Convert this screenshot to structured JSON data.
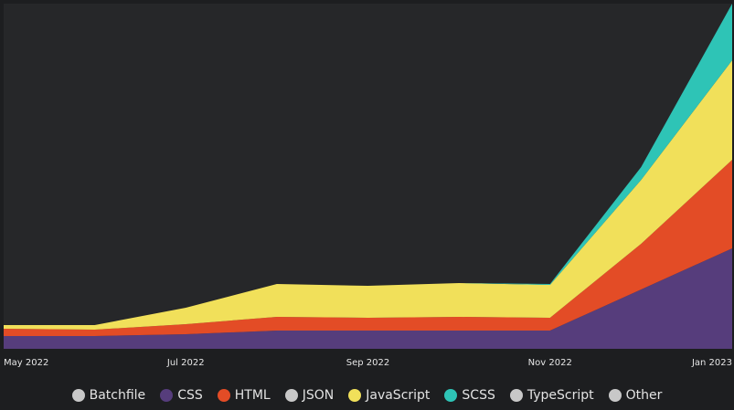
{
  "chart_data": {
    "type": "area",
    "stacked": true,
    "x": [
      "May 2022",
      "Jun 2022",
      "Jul 2022",
      "Aug 2022",
      "Sep 2022",
      "Oct 2022",
      "Nov 2022",
      "Dec 2022",
      "Jan 2023"
    ],
    "x_tick_labels": [
      "May 2022",
      "Jul 2022",
      "Sep 2022",
      "Nov 2022",
      "Jan 2023"
    ],
    "ylim": [
      0,
      378
    ],
    "grid": false,
    "legend_position": "bottom",
    "series": [
      {
        "name": "Batchfile",
        "color": "#c8c8c8",
        "values": [
          0,
          0,
          0,
          0,
          0,
          0,
          0,
          0,
          0
        ]
      },
      {
        "name": "CSS",
        "color": "#563d7c",
        "values": [
          14,
          14,
          16,
          20,
          20,
          20,
          20,
          65,
          110
        ]
      },
      {
        "name": "HTML",
        "color": "#e34c26",
        "values": [
          8,
          7,
          11,
          15,
          14,
          15,
          14,
          50,
          97
        ]
      },
      {
        "name": "JSON",
        "color": "#c8c8c8",
        "values": [
          0,
          0,
          0,
          0,
          0,
          0,
          0,
          0,
          0
        ]
      },
      {
        "name": "JavaScript",
        "color": "#f1e05a",
        "values": [
          4,
          5,
          18,
          36,
          35,
          37,
          36,
          70,
          109
        ]
      },
      {
        "name": "SCSS",
        "color": "#2ec4b6",
        "values": [
          0,
          0,
          0,
          0,
          0,
          0,
          1,
          14,
          62
        ]
      },
      {
        "name": "TypeScript",
        "color": "#c8c8c8",
        "values": [
          0,
          0,
          0,
          0,
          0,
          0,
          0,
          0,
          0
        ]
      },
      {
        "name": "Other",
        "color": "#c8c8c8",
        "values": [
          0,
          0,
          0,
          0,
          0,
          0,
          0,
          0,
          0
        ]
      }
    ]
  },
  "colors": {
    "page_background": "#1d1e20",
    "plot_background": "#262729",
    "text": "#e3e3e3"
  }
}
